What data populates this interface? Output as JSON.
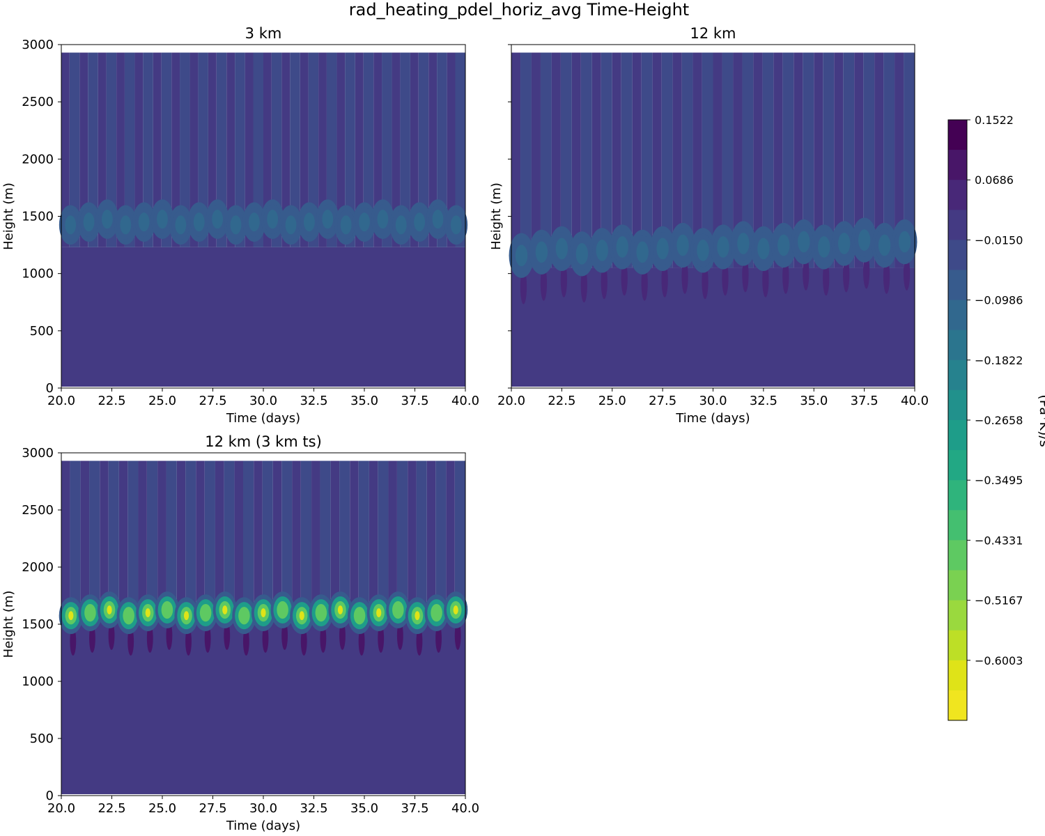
{
  "suptitle": "rad_heating_pdel_horiz_avg Time-Height",
  "colorbar": {
    "label": "(Pa*K)/s",
    "tick_labels": [
      "0.1522",
      "0.0686",
      "−0.0150",
      "−0.0986",
      "−0.1822",
      "−0.2658",
      "−0.3495",
      "−0.4331",
      "−0.5167",
      "−0.6003"
    ],
    "levels_top_to_bottom": [
      0.1522,
      0.1104,
      0.0686,
      0.0268,
      -0.015,
      -0.0568,
      -0.0986,
      -0.1404,
      -0.1822,
      -0.224,
      -0.2658,
      -0.3077,
      -0.3495,
      -0.3913,
      -0.4331,
      -0.4749,
      -0.5167,
      -0.5585,
      -0.6003,
      -0.6421
    ],
    "colors_top_to_bottom": [
      "#440154",
      "#481668",
      "#482878",
      "#443a83",
      "#3e4a89",
      "#375b8d",
      "#31688e",
      "#2b758e",
      "#26828e",
      "#21918c",
      "#1e9d89",
      "#22a884",
      "#2fb47c",
      "#44bf70",
      "#5ec962",
      "#7ad151",
      "#9ad93e",
      "#bddf26",
      "#dfe318",
      "#f0e51f"
    ]
  },
  "chart_data": [
    {
      "type": "heatmap",
      "title": "3 km",
      "xlabel": "Time (days)",
      "ylabel": "Height (m)",
      "xlim": [
        20,
        40
      ],
      "ylim": [
        0,
        3000
      ],
      "data_top_m": 2930,
      "x_ticks": [
        "20.0",
        "22.5",
        "25.0",
        "27.5",
        "30.0",
        "32.5",
        "35.0",
        "37.5",
        "40.0"
      ],
      "y_ticks": [
        "0",
        "500",
        "1000",
        "1500",
        "2000",
        "2500",
        "3000"
      ],
      "show_ytick_labels": true,
      "features": {
        "base_level": -0.015,
        "stripes_above_m": 1230,
        "stripe_alt_level": -0.0568,
        "band_center_m": 1450,
        "band_halfwidth_m": 150,
        "band_level": -0.14,
        "cells_per_day": 1.08,
        "dark_cell_level": null
      }
    },
    {
      "type": "heatmap",
      "title": "12 km",
      "xlabel": "Time (days)",
      "ylabel": "Height (m)",
      "xlim": [
        20,
        40
      ],
      "ylim": [
        0,
        3000
      ],
      "data_top_m": 2930,
      "x_ticks": [
        "20.0",
        "22.5",
        "25.0",
        "27.5",
        "30.0",
        "32.5",
        "35.0",
        "37.5",
        "40.0"
      ],
      "y_ticks": [
        "0",
        "500",
        "1000",
        "1500",
        "2000",
        "2500",
        "3000"
      ],
      "show_ytick_labels": false,
      "features": {
        "base_level": -0.015,
        "stripes_above_m": 1050,
        "stripe_alt_level": -0.0568,
        "band_center_m": 1180,
        "band_halfwidth_m": 170,
        "band_level": -0.13,
        "band_rise_m": 100,
        "cells_per_day": 1.0,
        "dark_cell_level": 0.0268
      }
    },
    {
      "type": "heatmap",
      "title": "12 km (3 km ts)",
      "xlabel": "Time (days)",
      "ylabel": "Height (m)",
      "xlim": [
        20,
        40
      ],
      "ylim": [
        0,
        3000
      ],
      "data_top_m": 2930,
      "x_ticks": [
        "20.0",
        "22.5",
        "25.0",
        "27.5",
        "30.0",
        "32.5",
        "35.0",
        "37.5",
        "40.0"
      ],
      "y_ticks": [
        "0",
        "500",
        "1000",
        "1500",
        "2000",
        "2500",
        "3000"
      ],
      "show_ytick_labels": true,
      "features": {
        "base_level": -0.015,
        "stripes_above_m": 1550,
        "stripe_alt_level": -0.0568,
        "band_center_m": 1600,
        "band_halfwidth_m": 140,
        "band_level": -0.45,
        "band_peak_level": -0.62,
        "cells_per_day": 1.05,
        "dark_cell_level": 0.0686
      }
    }
  ]
}
